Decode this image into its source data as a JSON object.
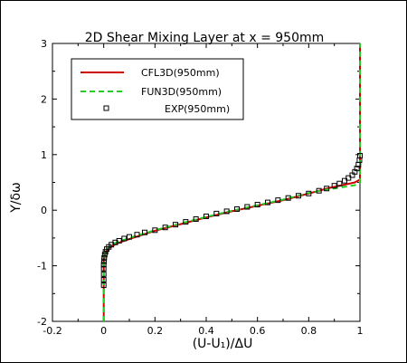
{
  "chart_data": {
    "type": "line",
    "title": "2D Shear Mixing Layer at x = 950mm",
    "xlabel": "(U-U₁)/ΔU",
    "ylabel": "Y/δω",
    "xlim": [
      -0.2,
      1.0
    ],
    "ylim": [
      -2,
      3
    ],
    "xticks": [
      "-0.2",
      "0",
      "0.2",
      "0.4",
      "0.6",
      "0.8",
      "1"
    ],
    "yticks": [
      "-2",
      "-1",
      "0",
      "1",
      "2",
      "3"
    ],
    "legend_position": "top-left",
    "grid": false,
    "series": [
      {
        "name": "CFL3D(950mm)",
        "color": "#cc0000",
        "style": "solid",
        "x": [
          0,
          0,
          0,
          0.005,
          0.02,
          0.05,
          0.1,
          0.2,
          0.3,
          0.4,
          0.5,
          0.6,
          0.7,
          0.8,
          0.88,
          0.94,
          0.98,
          1,
          1,
          1
        ],
        "y": [
          -2,
          -1.2,
          -0.9,
          -0.78,
          -0.68,
          -0.6,
          -0.52,
          -0.37,
          -0.25,
          -0.13,
          -0.02,
          0.08,
          0.18,
          0.3,
          0.4,
          0.46,
          0.5,
          0.55,
          1.0,
          3
        ]
      },
      {
        "name": "FUN3D(950mm)",
        "color": "#22cc22",
        "style": "dashed",
        "x": [
          0,
          0,
          0,
          0.005,
          0.02,
          0.05,
          0.1,
          0.2,
          0.3,
          0.4,
          0.5,
          0.6,
          0.7,
          0.8,
          0.88,
          0.94,
          0.98,
          1,
          1,
          1
        ],
        "y": [
          -2,
          -1.2,
          -0.9,
          -0.76,
          -0.66,
          -0.58,
          -0.5,
          -0.36,
          -0.24,
          -0.12,
          -0.01,
          0.09,
          0.19,
          0.31,
          0.38,
          0.42,
          0.45,
          0.5,
          1.0,
          3
        ]
      },
      {
        "name": "EXP(950mm)",
        "color": "#000000",
        "style": "markers",
        "x": [
          0.0,
          0.0,
          0.0,
          0.0,
          0.0,
          0.001,
          0.002,
          0.004,
          0.007,
          0.012,
          0.02,
          0.03,
          0.045,
          0.06,
          0.08,
          0.1,
          0.13,
          0.16,
          0.2,
          0.24,
          0.28,
          0.32,
          0.36,
          0.4,
          0.44,
          0.48,
          0.52,
          0.56,
          0.6,
          0.64,
          0.68,
          0.72,
          0.76,
          0.8,
          0.84,
          0.87,
          0.9,
          0.92,
          0.94,
          0.955,
          0.97,
          0.98,
          0.988,
          0.994,
          0.998,
          1.0
        ],
        "y": [
          -1.35,
          -1.25,
          -1.15,
          -1.05,
          -0.98,
          -0.92,
          -0.86,
          -0.8,
          -0.75,
          -0.7,
          -0.66,
          -0.62,
          -0.58,
          -0.55,
          -0.51,
          -0.48,
          -0.44,
          -0.4,
          -0.36,
          -0.31,
          -0.26,
          -0.21,
          -0.16,
          -0.11,
          -0.06,
          -0.02,
          0.02,
          0.06,
          0.1,
          0.14,
          0.18,
          0.22,
          0.26,
          0.3,
          0.35,
          0.39,
          0.44,
          0.48,
          0.53,
          0.58,
          0.63,
          0.69,
          0.75,
          0.82,
          0.9,
          0.98
        ]
      }
    ]
  }
}
